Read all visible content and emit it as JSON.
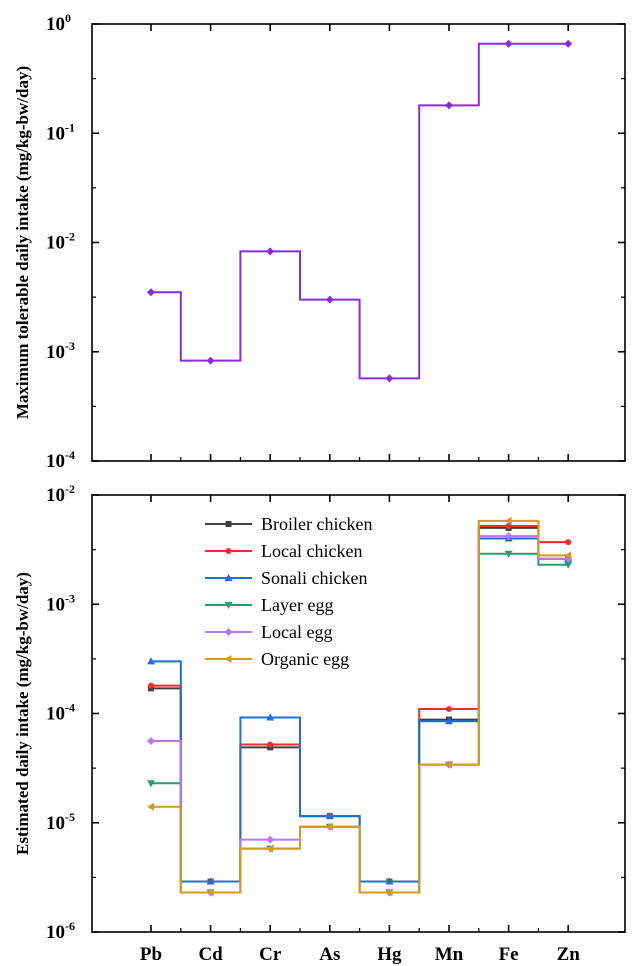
{
  "chart_data": [
    {
      "type": "line",
      "step": true,
      "categories": [
        "Pb",
        "Cd",
        "Cr",
        "As",
        "Hg",
        "Mn",
        "Fe",
        "Zn"
      ],
      "ylabel": "Maximum tolerable daily intake (mg/kg-bw/day)",
      "yscale": "log",
      "ylim": [
        0.0001,
        1
      ],
      "ytick_labels": [
        {
          "base": "10",
          "exp": "0"
        },
        {
          "base": "10",
          "exp": "-1"
        },
        {
          "base": "10",
          "exp": "-2"
        },
        {
          "base": "10",
          "exp": "-3"
        },
        {
          "base": "10",
          "exp": "-4"
        }
      ],
      "series": [
        {
          "values": [
            0.0035,
            0.00083,
            0.0083,
            0.003,
            0.00057,
            0.18,
            0.66,
            0.66
          ],
          "color": "#8a2be2",
          "marker": "diamond"
        }
      ]
    },
    {
      "type": "line",
      "step": true,
      "categories": [
        "Pb",
        "Cd",
        "Cr",
        "As",
        "Hg",
        "Mn",
        "Fe",
        "Zn"
      ],
      "ylabel": "Estimated daily intake (mg/kg-bw/day)",
      "yscale": "log",
      "ylim": [
        1e-06,
        0.01
      ],
      "ytick_labels": [
        {
          "base": "10",
          "exp": "-2"
        },
        {
          "base": "10",
          "exp": "-3"
        },
        {
          "base": "10",
          "exp": "-4"
        },
        {
          "base": "10",
          "exp": "-5"
        },
        {
          "base": "10",
          "exp": "-6"
        }
      ],
      "legend": "top-left",
      "series": [
        {
          "name": "Broiler chicken",
          "values": [
            0.00017,
            2.9e-06,
            4.9e-05,
            1.15e-05,
            2.9e-06,
            8.8e-05,
            0.005,
            0.0026
          ],
          "color": "#404040",
          "marker": "square"
        },
        {
          "name": "Local chicken",
          "values": [
            0.00018,
            2.9e-06,
            5.2e-05,
            1.15e-05,
            2.9e-06,
            0.00011,
            0.0052,
            0.0037
          ],
          "color": "#ff2a2a",
          "marker": "circle"
        },
        {
          "name": "Sonali chicken",
          "values": [
            0.0003,
            2.9e-06,
            9.2e-05,
            1.15e-05,
            2.9e-06,
            8.5e-05,
            0.004,
            0.0026
          ],
          "color": "#1f6fd6",
          "marker": "triangle-up"
        },
        {
          "name": "Layer egg",
          "values": [
            2.3e-05,
            2.3e-06,
            5.8e-06,
            9.2e-06,
            2.3e-06,
            3.4e-05,
            0.0029,
            0.0023
          ],
          "color": "#22a06b",
          "marker": "triangle-down"
        },
        {
          "name": "Local egg",
          "values": [
            5.6e-05,
            2.3e-06,
            7e-06,
            9.2e-06,
            2.3e-06,
            3.4e-05,
            0.0042,
            0.0026
          ],
          "color": "#bb77ee",
          "marker": "diamond"
        },
        {
          "name": "Organic egg",
          "values": [
            1.4e-05,
            2.3e-06,
            5.8e-06,
            9.2e-06,
            2.3e-06,
            3.4e-05,
            0.0058,
            0.0028
          ],
          "color": "#d49a1a",
          "marker": "triangle-left"
        }
      ]
    }
  ]
}
